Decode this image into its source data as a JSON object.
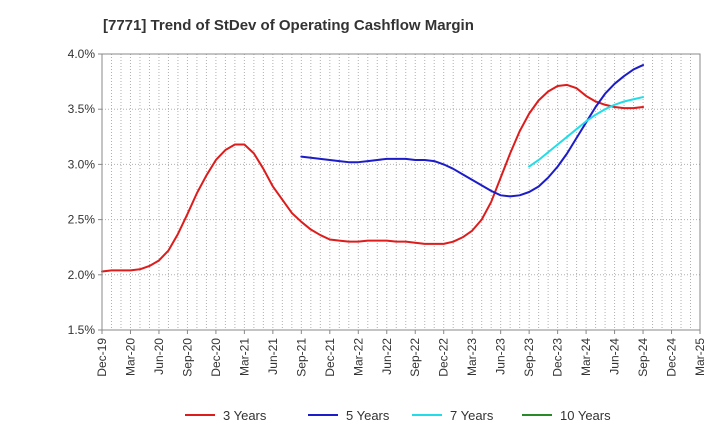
{
  "chart_data": {
    "type": "line",
    "title": "[7771]  Trend of StDev of Operating Cashflow Margin",
    "xlabel": "",
    "ylabel": "",
    "ylim": [
      1.5,
      4.0
    ],
    "y_unit": "%",
    "yticks": [
      "1.5%",
      "2.0%",
      "2.5%",
      "3.0%",
      "3.5%",
      "4.0%"
    ],
    "x_tick_labels": [
      "Dec-19",
      "Mar-20",
      "Jun-20",
      "Sep-20",
      "Dec-20",
      "Mar-21",
      "Jun-21",
      "Sep-21",
      "Dec-21",
      "Mar-22",
      "Jun-22",
      "Sep-22",
      "Dec-22",
      "Mar-23",
      "Jun-23",
      "Sep-23",
      "Dec-23",
      "Mar-24",
      "Jun-24",
      "Sep-24",
      "Dec-24",
      "Mar-25"
    ],
    "grid": true,
    "legend_position": "bottom",
    "series": [
      {
        "name": "3 Years",
        "color": "#dd1c1c",
        "x": [
          "2019-12",
          "2020-01",
          "2020-02",
          "2020-03",
          "2020-04",
          "2020-05",
          "2020-06",
          "2020-07",
          "2020-08",
          "2020-09",
          "2020-10",
          "2020-11",
          "2020-12",
          "2021-01",
          "2021-02",
          "2021-03",
          "2021-04",
          "2021-05",
          "2021-06",
          "2021-07",
          "2021-08",
          "2021-09",
          "2021-10",
          "2021-11",
          "2021-12",
          "2022-01",
          "2022-02",
          "2022-03",
          "2022-04",
          "2022-05",
          "2022-06",
          "2022-07",
          "2022-08",
          "2022-09",
          "2022-10",
          "2022-11",
          "2022-12",
          "2023-01",
          "2023-02",
          "2023-03",
          "2023-04",
          "2023-05",
          "2023-06",
          "2023-07",
          "2023-08",
          "2023-09",
          "2023-10",
          "2023-11",
          "2023-12",
          "2024-01",
          "2024-02",
          "2024-03",
          "2024-04",
          "2024-05",
          "2024-06",
          "2024-07",
          "2024-08",
          "2024-09"
        ],
        "values": [
          2.03,
          2.04,
          2.04,
          2.04,
          2.05,
          2.08,
          2.13,
          2.22,
          2.37,
          2.55,
          2.74,
          2.9,
          3.04,
          3.13,
          3.18,
          3.18,
          3.1,
          2.96,
          2.8,
          2.68,
          2.56,
          2.48,
          2.41,
          2.36,
          2.32,
          2.31,
          2.3,
          2.3,
          2.31,
          2.31,
          2.31,
          2.3,
          2.3,
          2.29,
          2.28,
          2.28,
          2.28,
          2.3,
          2.34,
          2.4,
          2.5,
          2.66,
          2.88,
          3.1,
          3.3,
          3.46,
          3.58,
          3.66,
          3.71,
          3.72,
          3.69,
          3.62,
          3.57,
          3.54,
          3.52,
          3.51,
          3.51,
          3.52
        ]
      },
      {
        "name": "5 Years",
        "color": "#1c1cc8",
        "x": [
          "2021-09",
          "2021-10",
          "2021-11",
          "2021-12",
          "2022-01",
          "2022-02",
          "2022-03",
          "2022-04",
          "2022-05",
          "2022-06",
          "2022-07",
          "2022-08",
          "2022-09",
          "2022-10",
          "2022-11",
          "2022-12",
          "2023-01",
          "2023-02",
          "2023-03",
          "2023-04",
          "2023-05",
          "2023-06",
          "2023-07",
          "2023-08",
          "2023-09",
          "2023-10",
          "2023-11",
          "2023-12",
          "2024-01",
          "2024-02",
          "2024-03",
          "2024-04",
          "2024-05",
          "2024-06",
          "2024-07",
          "2024-08",
          "2024-09"
        ],
        "values": [
          3.07,
          3.06,
          3.05,
          3.04,
          3.03,
          3.02,
          3.02,
          3.03,
          3.04,
          3.05,
          3.05,
          3.05,
          3.04,
          3.04,
          3.03,
          3.0,
          2.96,
          2.91,
          2.86,
          2.81,
          2.76,
          2.72,
          2.71,
          2.72,
          2.75,
          2.8,
          2.88,
          2.98,
          3.1,
          3.24,
          3.38,
          3.52,
          3.64,
          3.73,
          3.8,
          3.86,
          3.9
        ]
      },
      {
        "name": "7 Years",
        "color": "#22dde8",
        "x": [
          "2023-09",
          "2023-10",
          "2023-11",
          "2023-12",
          "2024-01",
          "2024-02",
          "2024-03",
          "2024-04",
          "2024-05",
          "2024-06",
          "2024-07",
          "2024-08",
          "2024-09"
        ],
        "values": [
          2.98,
          3.04,
          3.11,
          3.18,
          3.25,
          3.32,
          3.39,
          3.45,
          3.5,
          3.54,
          3.57,
          3.59,
          3.61
        ]
      },
      {
        "name": "10 Years",
        "color": "#2a8a2a",
        "x": [],
        "values": []
      }
    ]
  }
}
